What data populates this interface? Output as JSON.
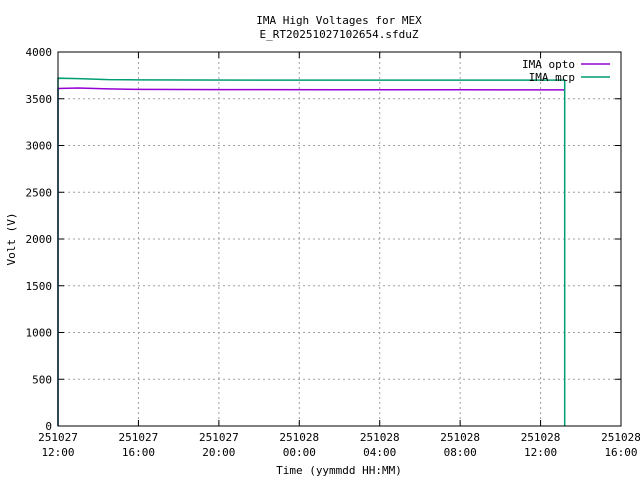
{
  "chart_data": {
    "type": "line",
    "title": "IMA High Voltages for MEX",
    "subtitle": "E_RT20251027102654.sfduZ",
    "xlabel": "Time (yymmdd HH:MM)",
    "ylabel": "Volt (V)",
    "ylim": [
      0,
      4000
    ],
    "xlim_hours": [
      0,
      28
    ],
    "grid": true,
    "legend_position": "top-right",
    "y_ticks": [
      "0",
      "500",
      "1000",
      "1500",
      "2000",
      "2500",
      "3000",
      "3500",
      "4000"
    ],
    "x_ticks": [
      {
        "date": "251027",
        "time": "12:00"
      },
      {
        "date": "251027",
        "time": "16:00"
      },
      {
        "date": "251027",
        "time": "20:00"
      },
      {
        "date": "251028",
        "time": "00:00"
      },
      {
        "date": "251028",
        "time": "04:00"
      },
      {
        "date": "251028",
        "time": "08:00"
      },
      {
        "date": "251028",
        "time": "12:00"
      },
      {
        "date": "251028",
        "time": "16:00"
      }
    ],
    "series": [
      {
        "name": "IMA opto",
        "color": "#9400d3",
        "points": [
          [
            0.0,
            0
          ],
          [
            0.0,
            3610
          ],
          [
            1.0,
            3615
          ],
          [
            2.5,
            3605
          ],
          [
            4.0,
            3600
          ],
          [
            8.0,
            3598
          ],
          [
            14.0,
            3597
          ],
          [
            20.0,
            3596
          ],
          [
            25.2,
            3595
          ]
        ]
      },
      {
        "name": "IMA mcp",
        "color": "#009e73",
        "points": [
          [
            0.0,
            0
          ],
          [
            0.0,
            3720
          ],
          [
            1.0,
            3715
          ],
          [
            2.5,
            3705
          ],
          [
            4.0,
            3702
          ],
          [
            10.0,
            3700
          ],
          [
            18.0,
            3700
          ],
          [
            25.2,
            3700
          ],
          [
            25.2,
            0
          ]
        ]
      }
    ]
  }
}
